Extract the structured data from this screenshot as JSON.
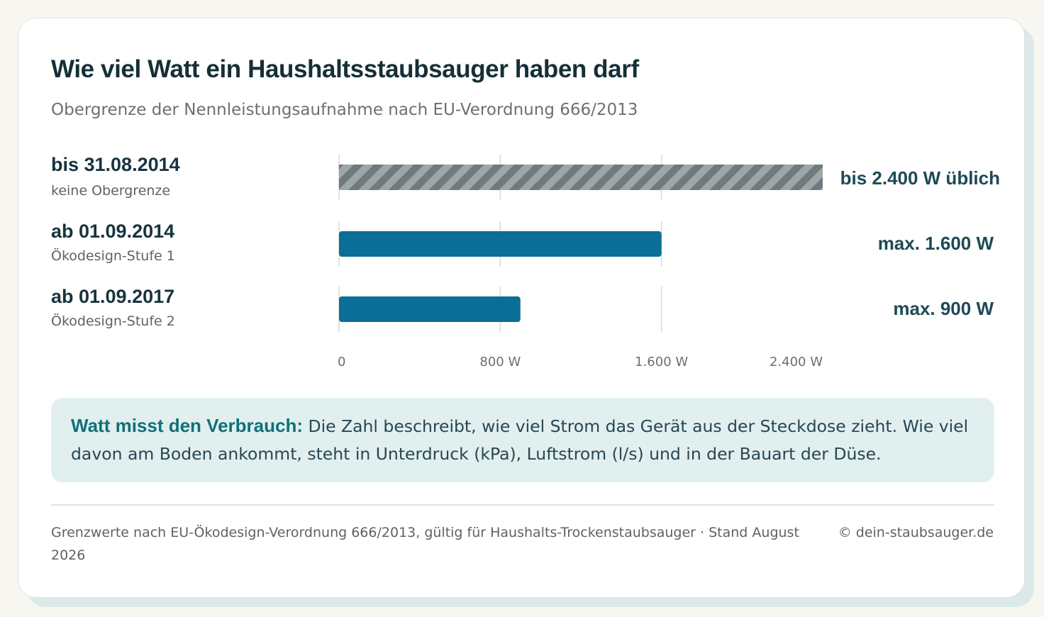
{
  "title": "Wie viel Watt ein Haushaltsstaubsauger haben darf",
  "subtitle": "Obergrenze der Nennleistungsaufnahme nach EU-Verordnung 666/2013",
  "colors": {
    "bar_fill": "#0b6e96",
    "hatch_dark": "#6f7a7c",
    "hatch_light": "#9da6a8",
    "grid": "#d9d9d4",
    "note_background": "#e1efef",
    "note_strong": "#11707a"
  },
  "chart_data": {
    "type": "bar",
    "orientation": "horizontal",
    "categories": [
      "bis 31.08.2014",
      "ab 01.09.2014",
      "ab 01.09.2017"
    ],
    "category_sublabels": [
      "keine Obergrenze",
      "Ökodesign-Stufe 1",
      "Ökodesign-Stufe 2"
    ],
    "values": [
      2400,
      1600,
      900
    ],
    "value_labels": [
      "bis 2.400 W üblich",
      "max. 1.600 W",
      "max. 900 W"
    ],
    "styles": [
      "hatched",
      "solid",
      "solid"
    ],
    "x_ticks": [
      0,
      800,
      1600,
      2400
    ],
    "x_tick_labels": [
      "0",
      "800 W",
      "1.600 W",
      "2.400 W"
    ],
    "xlim": [
      0,
      2400
    ],
    "grid": true,
    "legend": false
  },
  "note": {
    "strong": "Watt misst den Verbrauch:",
    "text": "Die Zahl beschreibt, wie viel Strom das Gerät aus der Steckdose zieht. Wie viel davon am Boden ankommt, steht in Unterdruck (kPa), Luftstrom (l/s) und in der Bauart der Düse."
  },
  "footer": {
    "source": "Grenzwerte nach EU-Ökodesign-Verordnung 666/2013, gültig für Haushalts-Trockenstaubsauger · Stand August 2026",
    "credit": "© dein-staubsauger.de"
  }
}
